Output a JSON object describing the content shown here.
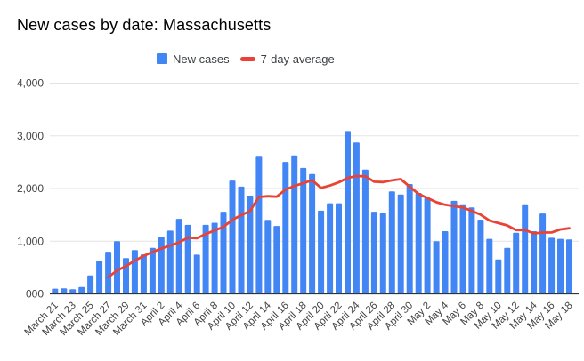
{
  "title": "New cases by date: Massachusetts",
  "legend": [
    {
      "label": "New cases",
      "marker": "square",
      "color": "#4285F4"
    },
    {
      "label": "7-day average",
      "marker": "dash",
      "color": "#EA4335"
    }
  ],
  "colors": {
    "bar": "#4285F4",
    "line": "#EA4335",
    "grid": "#e3e3e3",
    "axis_line": "#333333",
    "axis_text": "#424242",
    "title_text": "#000000",
    "legend_text": "#3c4043",
    "background": "#ffffff"
  },
  "y_axis": {
    "ticks": [
      {
        "value": 0,
        "label": "000"
      },
      {
        "value": 1000,
        "label": "1,000"
      },
      {
        "value": 2000,
        "label": "2,000"
      },
      {
        "value": 3000,
        "label": "3,000"
      },
      {
        "value": 4000,
        "label": "4,000"
      }
    ],
    "max": 4000
  },
  "x_axis": {
    "tick_every": 2
  },
  "chart_data": {
    "type": "bar",
    "title": "New cases by date: Massachusetts",
    "xlabel": "",
    "ylabel": "",
    "ylim": [
      0,
      4000
    ],
    "grid": true,
    "legend_position": "top",
    "categories": [
      "March 21",
      "March 22",
      "March 23",
      "March 24",
      "March 25",
      "March 26",
      "March 27",
      "March 28",
      "March 29",
      "March 30",
      "March 31",
      "April 1",
      "April 2",
      "April 3",
      "April 4",
      "April 5",
      "April 6",
      "April 7",
      "April 8",
      "April 9",
      "April 10",
      "April 11",
      "April 12",
      "April 13",
      "April 14",
      "April 15",
      "April 16",
      "April 17",
      "April 18",
      "April 19",
      "April 20",
      "April 21",
      "April 22",
      "April 23",
      "April 24",
      "April 25",
      "April 26",
      "April 27",
      "April 28",
      "April 29",
      "April 30",
      "May 1",
      "May 2",
      "May 3",
      "May 4",
      "May 5",
      "May 6",
      "May 7",
      "May 8",
      "May 9",
      "May 10",
      "May 11",
      "May 12",
      "May 13",
      "May 14",
      "May 15",
      "May 16",
      "May 17",
      "May 18"
    ],
    "series": [
      {
        "name": "New cases",
        "type": "bar",
        "color": "#4285F4",
        "values": [
          100,
          105,
          90,
          130,
          350,
          630,
          800,
          1000,
          680,
          830,
          750,
          875,
          1085,
          1200,
          1425,
          1310,
          745,
          1310,
          1350,
          1560,
          2150,
          2035,
          1865,
          2605,
          1405,
          1290,
          2505,
          2630,
          2390,
          2275,
          1580,
          1720,
          1720,
          3090,
          2875,
          2360,
          1560,
          1530,
          1945,
          1885,
          2085,
          1915,
          1820,
          1000,
          1190,
          1765,
          1700,
          1640,
          1410,
          1045,
          655,
          875,
          1160,
          1700,
          1190,
          1525,
          1065,
          1045,
          1035
        ]
      },
      {
        "name": "7-day average",
        "type": "line",
        "color": "#EA4335",
        "values": [
          null,
          null,
          null,
          null,
          null,
          null,
          315,
          444,
          526,
          631,
          720,
          795,
          860,
          917,
          978,
          1068,
          1056,
          1136,
          1204,
          1271,
          1407,
          1494,
          1574,
          1839,
          1853,
          1844,
          1979,
          2048,
          2099,
          2157,
          2011,
          2056,
          2117,
          2201,
          2236,
          2231,
          2129,
          2122,
          2154,
          2178,
          2034,
          1897,
          1820,
          1740,
          1691,
          1666,
          1639,
          1576,
          1504,
          1393,
          1344,
          1299,
          1212,
          1212,
          1148,
          1164,
          1167,
          1223,
          1246
        ]
      }
    ]
  }
}
